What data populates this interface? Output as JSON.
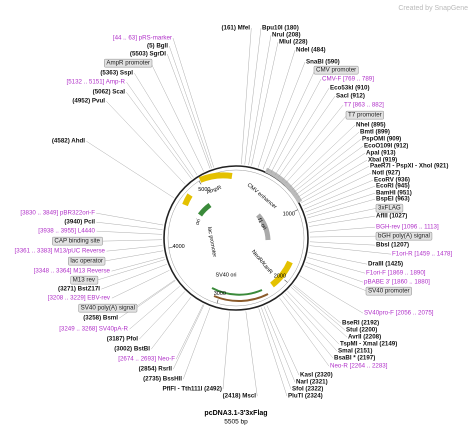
{
  "watermark": "Created by SnapGene",
  "name": "pcDNA3.1-3'3xFlag",
  "size": {
    "value": 5505,
    "label": "5505 bp"
  },
  "ruler": [
    1000,
    2000,
    3000,
    4000,
    5000
  ],
  "inner_features": [
    "AmpR",
    "CMV enhancer",
    "ori",
    "f1 ori",
    "lac promoter",
    "NeoR/KanR",
    "SV40 ori"
  ],
  "sites": [
    "(161) MfeI",
    "Bpu10I (180)",
    "NruI (208)",
    "MluI (228)",
    "NdeI (484)",
    "SnaBI (590)",
    "Eco53kI (910)",
    "SacI (912)",
    "NheI (895)",
    "BmtI (899)",
    "PspOMI (909)",
    "EcoO109I (912)",
    "ApaI (913)",
    "XbaI (919)",
    "PaeR7I - PspXI - XhoI (921)",
    "NotI (927)",
    "EcoRV (936)",
    "EcoRI (945)",
    "BamHI (951)",
    "BspEI (963)",
    "AflII (1027)",
    "BbsI (1207)",
    "DraIII (1425)",
    "BseRI (2192)",
    "StuI (2200)",
    "AvrII (2208)",
    "TspMI - XmaI (2149)",
    "SmaI (2151)",
    "BsaBI * (2197)",
    "KasI (2320)",
    "NarI (2321)",
    "SfoI (2322)",
    "PluTI (2324)",
    "(2418) MscI",
    "PflFI - Tth111I (2492)",
    "(2735) BssHII",
    "(2854) RsrII",
    "(3002) BstBI",
    "(3187) PfoI",
    "(3258) BsmI",
    "(3271) BstZ17I",
    "(3940) PciI",
    "(4582) AhdI",
    "(4952) PvuI",
    "(5062) ScaI",
    "(5363) SspI",
    "(5503) SgrDI",
    "(5) BglI"
  ],
  "primers": [
    "CMV-F [769 .. 789]",
    "T7 [863 .. 882]",
    "BGH-rev [1096 .. 1113]",
    "F1ori-R [1459 .. 1478]",
    "F1ori-F [1869 .. 1890]",
    "pBABE 3' [1860 .. 1880]",
    "SV40pro-F [2056 .. 2075]",
    "Neo-R [2264 .. 2283]",
    "[2674 .. 2693] Neo-F",
    "[3249 .. 3268] SV40pA-R",
    "[3208 .. 3229] EBV-rev",
    "[3348 .. 3364] M13 Reverse",
    "[3361 .. 3383] M13/pUC Reverse",
    "[3938 .. 3955] L4440",
    "[3830 .. 3849] pBR322ori-F",
    "[5132 .. 5151] Amp-R",
    "[44 .. 63] pRS-marker"
  ],
  "features": [
    "CMV promoter",
    "T7 promoter",
    "3xFLAG",
    "bGH poly(A) signal",
    "SV40 promoter",
    "SV40 poly(A) signal",
    "M13 rev",
    "lac operator",
    "CAP binding site",
    "AmpR promoter"
  ]
}
